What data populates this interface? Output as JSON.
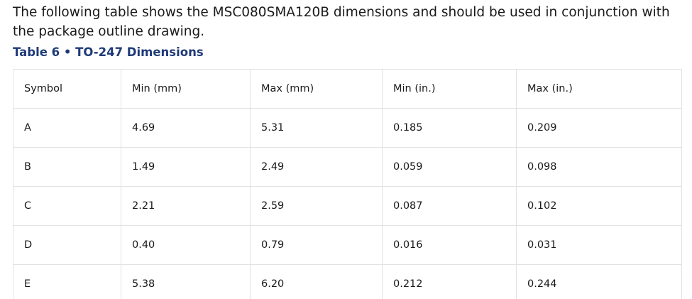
{
  "intro": "The following table shows the MSC080SMA120B dimensions and should be used in conjunction with the package outline drawing.",
  "table": {
    "caption": "Table 6 • TO-247 Dimensions",
    "header": [
      "Symbol",
      "Min (mm)",
      "Max (mm)",
      "Min (in.)",
      "Max (in.)"
    ],
    "rows": [
      [
        "A",
        "4.69",
        "5.31",
        "0.185",
        "0.209"
      ],
      [
        "B",
        "1.49",
        "2.49",
        "0.059",
        "0.098"
      ],
      [
        "C",
        "2.21",
        "2.59",
        "0.087",
        "0.102"
      ],
      [
        "D",
        "0.40",
        "0.79",
        "0.016",
        "0.031"
      ],
      [
        "E",
        "5.38",
        "6.20",
        "0.212",
        "0.244"
      ]
    ]
  }
}
